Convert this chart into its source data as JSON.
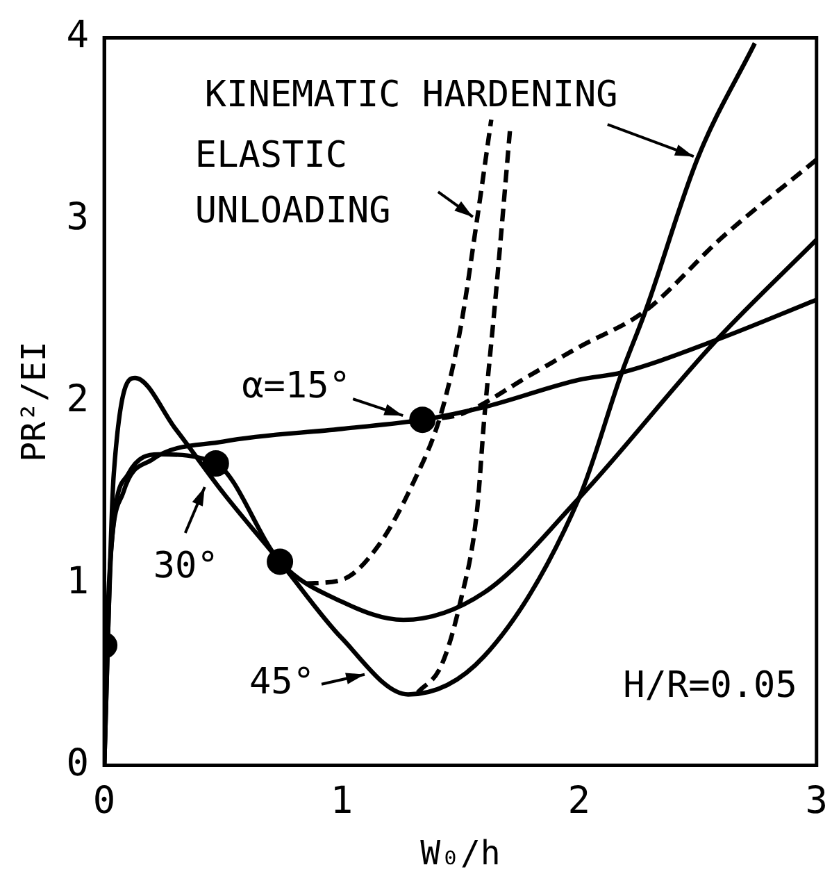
{
  "chart_data": {
    "type": "line",
    "xlabel": "W₀/h",
    "ylabel": "PR²/EI",
    "xlim": [
      0,
      3
    ],
    "ylim": [
      0,
      4
    ],
    "xticks": [
      0,
      1,
      2,
      3
    ],
    "yticks": [
      0,
      1,
      2,
      3,
      4
    ],
    "grid": false,
    "legend": false,
    "series": [
      {
        "color": "#000000",
        "line_style": "solid",
        "x": [
          0,
          0.02,
          0.08,
          0.2,
          0.5,
          1.0,
          1.34,
          1.6,
          2.0,
          2.18,
          2.58,
          3.0
        ],
        "values": [
          0,
          1.0,
          1.5,
          1.68,
          1.78,
          1.85,
          1.9,
          1.97,
          2.12,
          2.16,
          2.34,
          2.56
        ]
      },
      {
        "color": "#000000",
        "line_style": "solid",
        "x": [
          0,
          0.03,
          0.1,
          0.23,
          0.47,
          0.74,
          1.0,
          1.26,
          1.6,
          2.0,
          2.58,
          3.0
        ],
        "values": [
          0,
          1.2,
          1.6,
          1.71,
          1.66,
          1.12,
          0.9,
          0.8,
          0.95,
          1.47,
          2.34,
          2.89
        ]
      },
      {
        "color": "#000000",
        "line_style": "solid",
        "x": [
          0,
          0.04,
          0.13,
          0.3,
          0.5,
          0.74,
          1.0,
          1.28,
          1.6,
          2.0,
          2.18,
          2.28,
          2.5,
          2.74
        ],
        "values": [
          0,
          1.6,
          2.13,
          1.85,
          1.5,
          1.12,
          0.7,
          0.39,
          0.6,
          1.47,
          2.16,
          2.5,
          3.34,
          3.97
        ]
      },
      {
        "color": "#000000",
        "line_style": "dashed",
        "x": [
          1.34,
          1.5,
          1.8,
          2.0,
          2.28,
          2.6,
          3.0
        ],
        "values": [
          1.9,
          1.93,
          2.15,
          2.3,
          2.5,
          2.9,
          3.33
        ]
      },
      {
        "color": "#000000",
        "line_style": "dashed",
        "x": [
          0.85,
          1.0,
          1.15,
          1.3,
          1.42,
          1.5,
          1.57,
          1.63
        ],
        "values": [
          1.0,
          1.02,
          1.2,
          1.55,
          1.94,
          2.4,
          3.0,
          3.55
        ]
      },
      {
        "color": "#000000",
        "line_style": "dashed",
        "x": [
          1.32,
          1.42,
          1.5,
          1.57,
          1.6,
          1.65,
          1.71
        ],
        "values": [
          0.4,
          0.55,
          0.9,
          1.4,
          1.9,
          2.6,
          3.51
        ]
      },
      {
        "type": "scatter",
        "color": "#000000",
        "marker": "circle",
        "x": [
          1.34,
          0.47,
          0.74,
          0
        ],
        "values": [
          1.9,
          1.66,
          1.12,
          0.66
        ]
      }
    ],
    "annotations": [
      {
        "text": "KINEMATIC HARDENING",
        "x": 2.5,
        "y": 3.34
      },
      {
        "text": "ELASTIC UNLOADING",
        "x": 1.57,
        "y": 3.0
      },
      {
        "text": "α=15°",
        "x": 1.34,
        "y": 1.9
      },
      {
        "text": "30°",
        "x": 0.47,
        "y": 1.66
      },
      {
        "text": "45°",
        "x": 1.12,
        "y": 0.5
      },
      "H/R=0.05"
    ]
  }
}
